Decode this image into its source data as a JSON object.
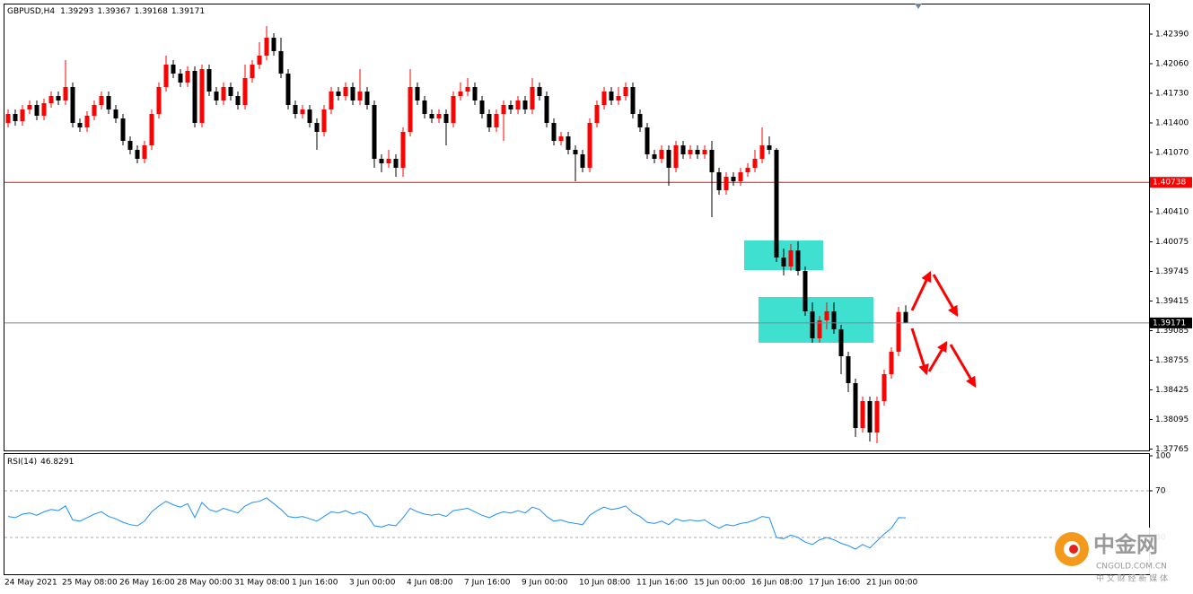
{
  "chart_data": [
    {
      "type": "candlestick",
      "title": "GBPUSD,H4",
      "categories": [
        "24 May 2021",
        null,
        null,
        null,
        null,
        null,
        null,
        null,
        "25 May 08:00",
        null,
        null,
        null,
        null,
        null,
        null,
        null,
        "26 May 16:00",
        null,
        null,
        null,
        null,
        null,
        null,
        null,
        "28 May 00:00",
        null,
        null,
        null,
        null,
        null,
        null,
        null,
        "31 May 08:00",
        null,
        null,
        null,
        null,
        null,
        null,
        null,
        "1 Jun 16:00",
        null,
        null,
        null,
        null,
        null,
        null,
        null,
        "3 Jun 00:00",
        null,
        null,
        null,
        null,
        null,
        null,
        null,
        "4 Jun 08:00",
        null,
        null,
        null,
        null,
        null,
        null,
        null,
        "7 Jun 16:00",
        null,
        null,
        null,
        null,
        null,
        null,
        null,
        "9 Jun 00:00",
        null,
        null,
        null,
        null,
        null,
        null,
        null,
        "10 Jun 08:00",
        null,
        null,
        null,
        null,
        null,
        null,
        null,
        "11 Jun 16:00",
        null,
        null,
        null,
        null,
        null,
        null,
        null,
        "15 Jun 00:00",
        null,
        null,
        null,
        null,
        null,
        null,
        null,
        "16 Jun 08:00",
        null,
        null,
        null,
        null,
        null,
        null,
        null,
        "17 Jun 16:00",
        null,
        null,
        null,
        null,
        null,
        null,
        null,
        "21 Jun 00:00",
        null,
        null,
        null,
        null,
        null
      ],
      "open": [
        1.414,
        1.415,
        1.4142,
        1.4155,
        1.416,
        1.4148,
        1.4162,
        1.417,
        1.4165,
        1.418,
        1.414,
        1.4135,
        1.4148,
        1.416,
        1.417,
        1.4155,
        1.4145,
        1.412,
        1.411,
        1.41,
        1.4115,
        1.415,
        1.418,
        1.4205,
        1.4195,
        1.4185,
        1.4198,
        1.414,
        1.42,
        1.4175,
        1.4165,
        1.418,
        1.417,
        1.416,
        1.419,
        1.4205,
        1.4215,
        1.4235,
        1.422,
        1.4195,
        1.416,
        1.415,
        1.4155,
        1.414,
        1.413,
        1.4155,
        1.4175,
        1.417,
        1.418,
        1.4165,
        1.4175,
        1.416,
        1.41,
        1.4095,
        1.41,
        1.409,
        1.413,
        1.418,
        1.4165,
        1.415,
        1.4145,
        1.415,
        1.414,
        1.417,
        1.4175,
        1.418,
        1.4165,
        1.415,
        1.4135,
        1.415,
        1.416,
        1.4155,
        1.4165,
        1.4155,
        1.418,
        1.417,
        1.414,
        1.412,
        1.4125,
        1.411,
        1.4105,
        1.409,
        1.414,
        1.416,
        1.4175,
        1.4165,
        1.417,
        1.418,
        1.415,
        1.4135,
        1.4105,
        1.41,
        1.411,
        1.409,
        1.4115,
        1.4105,
        1.411,
        1.4105,
        1.411,
        1.4085,
        1.4065,
        1.408,
        1.4075,
        1.4085,
        1.409,
        1.41,
        1.4115,
        1.411,
        1.399,
        1.398,
        1.3998,
        1.3975,
        1.393,
        1.39,
        1.392,
        1.393,
        1.391,
        1.388,
        1.385,
        1.38,
        1.383,
        1.3795,
        1.383,
        1.386,
        1.3885,
        1.39293
      ],
      "high": [
        1.4155,
        1.4155,
        1.416,
        1.4165,
        1.4165,
        1.4167,
        1.4175,
        1.4175,
        1.421,
        1.4185,
        1.4145,
        1.4153,
        1.4165,
        1.4175,
        1.4175,
        1.416,
        1.415,
        1.4125,
        1.4115,
        1.412,
        1.4155,
        1.4185,
        1.4215,
        1.421,
        1.42,
        1.4203,
        1.4203,
        1.4205,
        1.4205,
        1.418,
        1.4185,
        1.4185,
        1.4175,
        1.4205,
        1.421,
        1.423,
        1.4248,
        1.424,
        1.4235,
        1.42,
        1.4165,
        1.416,
        1.416,
        1.4145,
        1.416,
        1.418,
        1.418,
        1.4185,
        1.4185,
        1.42,
        1.418,
        1.4165,
        1.4105,
        1.411,
        1.4105,
        1.4135,
        1.42,
        1.4185,
        1.417,
        1.4155,
        1.4155,
        1.4155,
        1.4175,
        1.4185,
        1.419,
        1.4185,
        1.417,
        1.4155,
        1.4155,
        1.4165,
        1.4165,
        1.417,
        1.417,
        1.419,
        1.4185,
        1.4175,
        1.4145,
        1.413,
        1.413,
        1.4115,
        1.411,
        1.4145,
        1.4165,
        1.418,
        1.418,
        1.418,
        1.4185,
        1.4185,
        1.4155,
        1.414,
        1.411,
        1.4115,
        1.4115,
        1.412,
        1.412,
        1.4115,
        1.4115,
        1.4115,
        1.412,
        1.409,
        1.4085,
        1.4085,
        1.409,
        1.4095,
        1.411,
        1.4135,
        1.4125,
        1.4112,
        1.4,
        1.4005,
        1.4008,
        1.398,
        1.394,
        1.3925,
        1.394,
        1.394,
        1.3915,
        1.3885,
        1.3855,
        1.3835,
        1.3835,
        1.3835,
        1.3865,
        1.389,
        1.3935,
        1.39367
      ],
      "low": [
        1.4135,
        1.4137,
        1.4137,
        1.415,
        1.4143,
        1.4143,
        1.4157,
        1.416,
        1.416,
        1.4135,
        1.413,
        1.413,
        1.4143,
        1.4155,
        1.415,
        1.414,
        1.4115,
        1.4105,
        1.4095,
        1.4095,
        1.411,
        1.4145,
        1.4175,
        1.419,
        1.418,
        1.418,
        1.4135,
        1.4135,
        1.417,
        1.416,
        1.416,
        1.4165,
        1.4155,
        1.4155,
        1.4185,
        1.42,
        1.421,
        1.4215,
        1.419,
        1.4155,
        1.4145,
        1.4145,
        1.4135,
        1.411,
        1.4125,
        1.415,
        1.4165,
        1.4165,
        1.416,
        1.416,
        1.4155,
        1.409,
        1.4085,
        1.409,
        1.408,
        1.408,
        1.4125,
        1.416,
        1.4145,
        1.414,
        1.414,
        1.4115,
        1.4135,
        1.4165,
        1.417,
        1.416,
        1.4145,
        1.413,
        1.413,
        1.412,
        1.415,
        1.415,
        1.415,
        1.415,
        1.4165,
        1.4135,
        1.4115,
        1.4115,
        1.4105,
        1.4075,
        1.4085,
        1.4085,
        1.4135,
        1.4155,
        1.416,
        1.416,
        1.4165,
        1.4145,
        1.413,
        1.41,
        1.4095,
        1.4095,
        1.407,
        1.4085,
        1.41,
        1.41,
        1.41,
        1.41,
        1.4035,
        1.406,
        1.406,
        1.407,
        1.407,
        1.408,
        1.4085,
        1.4095,
        1.4105,
        1.3985,
        1.397,
        1.3975,
        1.397,
        1.3925,
        1.3895,
        1.3895,
        1.391,
        1.3905,
        1.386,
        1.384,
        1.379,
        1.3795,
        1.3785,
        1.3783,
        1.3825,
        1.3855,
        1.388,
        1.39168
      ],
      "close": [
        1.415,
        1.4142,
        1.4155,
        1.416,
        1.4148,
        1.4162,
        1.417,
        1.4165,
        1.418,
        1.414,
        1.4135,
        1.4148,
        1.416,
        1.417,
        1.4155,
        1.4145,
        1.412,
        1.411,
        1.41,
        1.4115,
        1.415,
        1.418,
        1.4205,
        1.4195,
        1.4185,
        1.4198,
        1.414,
        1.42,
        1.4175,
        1.4165,
        1.418,
        1.417,
        1.416,
        1.419,
        1.4205,
        1.4215,
        1.4235,
        1.422,
        1.4195,
        1.416,
        1.415,
        1.4155,
        1.414,
        1.413,
        1.4155,
        1.4175,
        1.417,
        1.418,
        1.4165,
        1.4175,
        1.416,
        1.41,
        1.4095,
        1.41,
        1.409,
        1.413,
        1.418,
        1.4165,
        1.415,
        1.4145,
        1.415,
        1.414,
        1.417,
        1.4175,
        1.418,
        1.4165,
        1.415,
        1.4135,
        1.415,
        1.416,
        1.4155,
        1.4165,
        1.4155,
        1.418,
        1.417,
        1.414,
        1.412,
        1.4125,
        1.411,
        1.4105,
        1.409,
        1.414,
        1.416,
        1.4175,
        1.4165,
        1.417,
        1.418,
        1.415,
        1.4135,
        1.4105,
        1.41,
        1.411,
        1.409,
        1.4115,
        1.4105,
        1.411,
        1.4105,
        1.411,
        1.4085,
        1.4065,
        1.408,
        1.4075,
        1.4085,
        1.409,
        1.41,
        1.4115,
        1.411,
        1.399,
        1.398,
        1.3998,
        1.3975,
        1.393,
        1.39,
        1.392,
        1.393,
        1.391,
        1.388,
        1.385,
        1.38,
        1.383,
        1.3795,
        1.383,
        1.386,
        1.3885,
        1.39293,
        1.39171
      ],
      "up_color": "#ff0000",
      "down_color": "#000000",
      "ylim": [
        1.3775,
        1.4272
      ],
      "yticks": [
        {
          "value": 1.4239,
          "label": "1.42390"
        },
        {
          "value": 1.4206,
          "label": "1.42060"
        },
        {
          "value": 1.4173,
          "label": "1.41730"
        },
        {
          "value": 1.414,
          "label": "1.41400"
        },
        {
          "value": 1.4107,
          "label": "1.41070"
        },
        {
          "value": 1.4041,
          "label": "1.40410"
        },
        1.40075,
        1.39745,
        1.39415,
        1.39085,
        1.38755,
        1.38425,
        1.38095,
        1.37765
      ],
      "hlines": [
        {
          "value": 1.40738,
          "color": "#ff0000"
        }
      ],
      "zones": [
        {
          "x0": 102.5,
          "x1": 113.5,
          "top": 1.4009,
          "bottom": 1.3976,
          "color": "#40e0d0"
        },
        {
          "x0": 104.5,
          "x1": 120.5,
          "top": 1.3946,
          "bottom": 1.3895,
          "color": "#40e0d0"
        }
      ]
    },
    {
      "type": "line",
      "title": "RSI(14)",
      "values": [
        48,
        47,
        50,
        51,
        49,
        52,
        54,
        53,
        57,
        45,
        44,
        47,
        50,
        52,
        48,
        46,
        43,
        41,
        40,
        44,
        52,
        57,
        61,
        58,
        56,
        59,
        47,
        60,
        54,
        52,
        55,
        53,
        51,
        57,
        60,
        61,
        64,
        59,
        54,
        48,
        47,
        48,
        46,
        44,
        48,
        52,
        51,
        53,
        50,
        52,
        49,
        40,
        39,
        41,
        40,
        47,
        55,
        52,
        50,
        49,
        50,
        48,
        53,
        54,
        55,
        52,
        49,
        47,
        50,
        52,
        51,
        53,
        51,
        56,
        54,
        48,
        44,
        45,
        43,
        42,
        41,
        49,
        53,
        56,
        54,
        55,
        57,
        51,
        48,
        43,
        42,
        44,
        41,
        46,
        44,
        45,
        44,
        45,
        41,
        38,
        41,
        40,
        42,
        43,
        45,
        48,
        47,
        30,
        29,
        32,
        30,
        26,
        24,
        28,
        30,
        28,
        25,
        23,
        20,
        24,
        21,
        27,
        33,
        38,
        47,
        46.8291
      ],
      "color": "#1e90ff",
      "ylim": [
        0,
        100
      ],
      "yticks": [
        100,
        70,
        30
      ],
      "levels": [
        70,
        30
      ]
    }
  ],
  "watermark": {
    "brand": "中金网",
    "site": "CNGOLD.COM.CN",
    "slogan": "中 文 财 经 新 媒 体"
  }
}
